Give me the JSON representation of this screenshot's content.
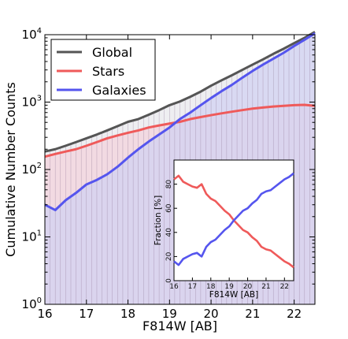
{
  "chart_data": [
    {
      "type": "line",
      "xlabel": "F814W [AB]",
      "ylabel": "Cumulative Number Counts",
      "xlim": [
        16,
        22.5
      ],
      "ylim": [
        1,
        10000
      ],
      "yscale": "log",
      "x_ticks": [
        "16",
        "17",
        "18",
        "19",
        "20",
        "21",
        "22"
      ],
      "y_ticks": [
        "10^0",
        "10^1",
        "10^2",
        "10^3",
        "10^4"
      ],
      "grid": false,
      "legend_position": "top-left",
      "fill_under_series": true,
      "series": [
        {
          "name": "Global",
          "color": "#555555",
          "fill": "#e8e8ec",
          "x": [
            16.0,
            16.25,
            16.5,
            16.75,
            17.0,
            17.25,
            17.5,
            17.75,
            18.0,
            18.25,
            18.5,
            18.75,
            19.0,
            19.25,
            19.5,
            19.75,
            20.0,
            20.25,
            20.5,
            20.75,
            21.0,
            21.25,
            21.5,
            21.75,
            22.0,
            22.25,
            22.5
          ],
          "values": [
            185,
            200,
            225,
            255,
            290,
            330,
            380,
            440,
            510,
            560,
            650,
            760,
            900,
            1020,
            1200,
            1430,
            1750,
            2100,
            2500,
            3000,
            3600,
            4300,
            5200,
            6200,
            7500,
            9000,
            11000
          ]
        },
        {
          "name": "Stars",
          "color": "#ef5a5a",
          "fill": "#f3d3dc",
          "x": [
            16.0,
            16.25,
            16.5,
            16.75,
            17.0,
            17.25,
            17.5,
            17.75,
            18.0,
            18.25,
            18.5,
            18.75,
            19.0,
            19.25,
            19.5,
            19.75,
            20.0,
            20.25,
            20.5,
            20.75,
            21.0,
            21.25,
            21.5,
            21.75,
            22.0,
            22.25,
            22.5
          ],
          "values": [
            155,
            170,
            185,
            200,
            225,
            255,
            290,
            320,
            350,
            380,
            420,
            450,
            480,
            510,
            560,
            600,
            640,
            680,
            720,
            760,
            800,
            830,
            860,
            880,
            900,
            910,
            880
          ]
        },
        {
          "name": "Galaxies",
          "color": "#5555ee",
          "fill": "#d2d2f2",
          "x": [
            16.0,
            16.25,
            16.5,
            16.75,
            17.0,
            17.25,
            17.5,
            17.75,
            18.0,
            18.25,
            18.5,
            18.75,
            19.0,
            19.25,
            19.5,
            19.75,
            20.0,
            20.25,
            20.5,
            20.75,
            21.0,
            21.25,
            21.5,
            21.75,
            22.0,
            22.25,
            22.5
          ],
          "values": [
            30,
            25,
            35,
            45,
            60,
            70,
            85,
            110,
            150,
            200,
            260,
            330,
            420,
            560,
            700,
            900,
            1150,
            1450,
            1800,
            2300,
            2900,
            3600,
            4400,
            5400,
            6800,
            8400,
            10500
          ]
        }
      ]
    },
    {
      "type": "line",
      "xlabel": "F814W [AB]",
      "ylabel": "Fraction [%]",
      "xlim": [
        16,
        22.5
      ],
      "ylim": [
        0,
        100
      ],
      "x_ticks": [
        "16",
        "17",
        "18",
        "19",
        "20",
        "21",
        "22"
      ],
      "y_ticks": [
        "0",
        "20",
        "40",
        "60",
        "80"
      ],
      "grid": false,
      "series": [
        {
          "name": "Stars",
          "color": "#ef5a5a",
          "x": [
            16.0,
            16.25,
            16.5,
            16.75,
            17.0,
            17.25,
            17.5,
            17.75,
            18.0,
            18.25,
            18.5,
            18.75,
            19.0,
            19.25,
            19.5,
            19.75,
            20.0,
            20.25,
            20.5,
            20.75,
            21.0,
            21.25,
            21.5,
            21.75,
            22.0,
            22.25,
            22.5
          ],
          "values": [
            84,
            87,
            82,
            80,
            78,
            77,
            80,
            72,
            68,
            66,
            62,
            58,
            55,
            50,
            46,
            42,
            40,
            36,
            33,
            28,
            26,
            25,
            22,
            19,
            16,
            14,
            11
          ]
        },
        {
          "name": "Galaxies",
          "color": "#5555ee",
          "x": [
            16.0,
            16.25,
            16.5,
            16.75,
            17.0,
            17.25,
            17.5,
            17.75,
            18.0,
            18.25,
            18.5,
            18.75,
            19.0,
            19.25,
            19.5,
            19.75,
            20.0,
            20.25,
            20.5,
            20.75,
            21.0,
            21.25,
            21.5,
            21.75,
            22.0,
            22.25,
            22.5
          ],
          "values": [
            16,
            13,
            18,
            20,
            22,
            23,
            20,
            28,
            32,
            34,
            38,
            42,
            45,
            50,
            54,
            58,
            60,
            64,
            67,
            72,
            74,
            75,
            78,
            81,
            84,
            86,
            89
          ]
        }
      ]
    }
  ]
}
